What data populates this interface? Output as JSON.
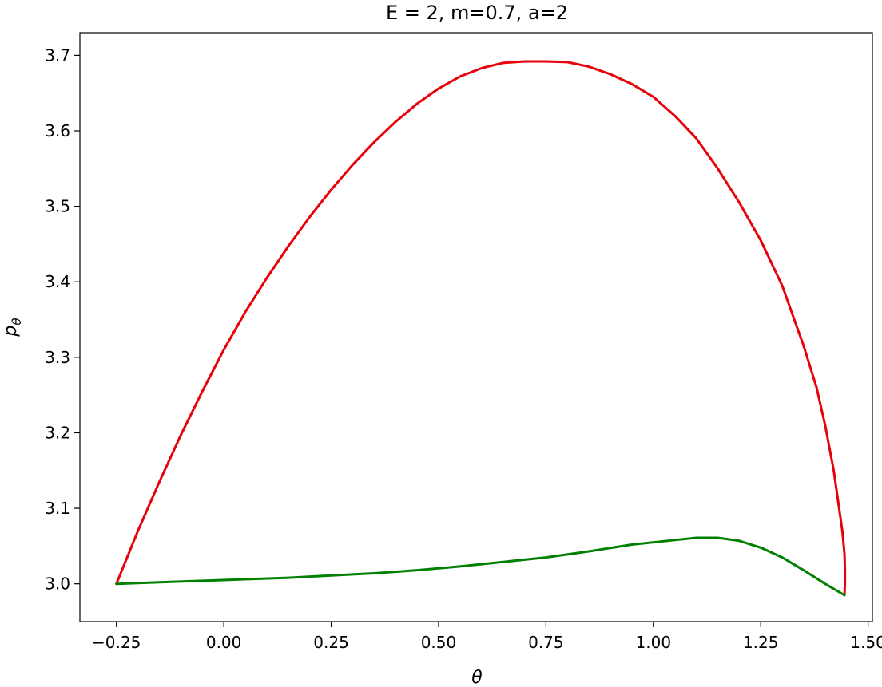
{
  "chart_data": {
    "type": "line",
    "title": "E = 2, m=0.7, a=2",
    "xlabel": "θ",
    "ylabel": "p_θ",
    "xlim": [
      -0.335,
      1.51
    ],
    "ylim": [
      2.95,
      3.73
    ],
    "xticks": [
      -0.25,
      0.0,
      0.25,
      0.5,
      0.75,
      1.0,
      1.25,
      1.5
    ],
    "xtick_labels": [
      "−0.25",
      "0.00",
      "0.25",
      "0.50",
      "0.75",
      "1.00",
      "1.25",
      "1.50"
    ],
    "yticks": [
      3.0,
      3.1,
      3.2,
      3.3,
      3.4,
      3.5,
      3.6,
      3.7
    ],
    "ytick_labels": [
      "3.0",
      "3.1",
      "3.2",
      "3.3",
      "3.4",
      "3.5",
      "3.6",
      "3.7"
    ],
    "grid": false,
    "series": [
      {
        "color": "#e8000b",
        "x": [
          -0.25,
          -0.2,
          -0.15,
          -0.1,
          -0.05,
          0.0,
          0.05,
          0.1,
          0.15,
          0.2,
          0.25,
          0.3,
          0.35,
          0.4,
          0.45,
          0.5,
          0.55,
          0.6,
          0.65,
          0.7,
          0.75,
          0.8,
          0.85,
          0.9,
          0.95,
          1.0,
          1.05,
          1.1,
          1.15,
          1.2,
          1.25,
          1.3,
          1.35,
          1.38,
          1.4,
          1.42,
          1.43,
          1.44,
          1.445,
          1.446,
          1.446,
          1.445
        ],
        "y": [
          3.0,
          3.07,
          3.135,
          3.197,
          3.255,
          3.31,
          3.36,
          3.405,
          3.447,
          3.486,
          3.522,
          3.555,
          3.585,
          3.612,
          3.636,
          3.656,
          3.672,
          3.683,
          3.69,
          3.692,
          3.692,
          3.691,
          3.685,
          3.675,
          3.662,
          3.645,
          3.62,
          3.59,
          3.55,
          3.505,
          3.455,
          3.395,
          3.315,
          3.26,
          3.21,
          3.15,
          3.11,
          3.07,
          3.04,
          3.02,
          3.0,
          2.985
        ]
      },
      {
        "color": "#008000",
        "x": [
          -0.25,
          -0.15,
          -0.05,
          0.05,
          0.15,
          0.25,
          0.35,
          0.45,
          0.55,
          0.65,
          0.75,
          0.85,
          0.95,
          1.05,
          1.1,
          1.15,
          1.2,
          1.25,
          1.3,
          1.35,
          1.4,
          1.445
        ],
        "y": [
          3.0,
          3.002,
          3.004,
          3.006,
          3.008,
          3.011,
          3.014,
          3.018,
          3.023,
          3.029,
          3.035,
          3.043,
          3.052,
          3.058,
          3.061,
          3.061,
          3.057,
          3.048,
          3.035,
          3.018,
          3.0,
          2.985
        ]
      }
    ]
  }
}
